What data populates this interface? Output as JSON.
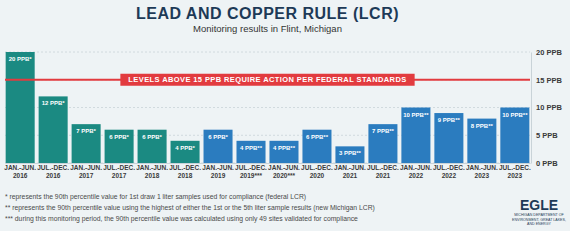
{
  "chart_data": {
    "type": "bar",
    "title": "LEAD AND COPPER RULE (LCR)",
    "subtitle": "Monitoring results in Flint, Michigan",
    "categories": [
      "JAN.-JUN. 2016",
      "JUL.-DEC. 2016",
      "JAN.-JUN. 2017",
      "JUL.-DEC. 2017",
      "JAN.-JUN. 2018",
      "JUL.-DEC. 2018",
      "JAN.-JUN. 2019",
      "JUL.-DEC. 2019***",
      "JAN.-JUN. 2020***",
      "JUL.-DEC. 2020",
      "JAN.-JUN. 2021",
      "JUL.-DEC. 2021",
      "JAN.-JUN. 2022",
      "JUL.-DEC. 2022",
      "JAN.-JUN. 2023",
      "JUL.-DEC. 2023"
    ],
    "values": [
      20,
      12,
      7,
      6,
      6,
      4,
      6,
      4,
      4,
      6,
      3,
      7,
      10,
      9,
      8,
      10
    ],
    "value_labels": [
      "20 PPB*",
      "12 PPB*",
      "7 PPB*",
      "6 PPB*",
      "6 PPB*",
      "4 PPB*",
      "6 PPB*",
      "4 PPB**",
      "4 PPB**",
      "6 PPB**",
      "3 PPB**",
      "7 PPB**",
      "10 PPB**",
      "9 PPB**",
      "8 PPB**",
      "10 PPB**"
    ],
    "colors": [
      "#1b8a82",
      "#1b8a82",
      "#1b8a82",
      "#1b8a82",
      "#1b8a82",
      "#1b8a82",
      "#2b7cbf",
      "#2b7cbf",
      "#2b7cbf",
      "#2b7cbf",
      "#2b7cbf",
      "#2b7cbf",
      "#2b7cbf",
      "#2b7cbf",
      "#2b7cbf",
      "#2b7cbf"
    ],
    "data_labels": true,
    "grid": true,
    "ylim": [
      0,
      20
    ],
    "yticks": [
      {
        "value": 0,
        "label": "0 PPB"
      },
      {
        "value": 5,
        "label": "5 PPB"
      },
      {
        "value": 10,
        "label": "10 PPB"
      },
      {
        "value": 15,
        "label": "15 PPB"
      },
      {
        "value": 20,
        "label": "20 PPB"
      }
    ],
    "reference_line": {
      "value": 15,
      "label": "LEVELS ABOVE 15 PPB REQUIRE ACTION PER FEDERAL STANDARDS"
    },
    "footnotes": [
      "* represents the 90th percentile value for 1st draw 1 liter samples used for compliance (federal LCR)",
      "** represents the 90th percentile value using the highest of either the 1st or the 5th liter sample results (new Michigan LCR)",
      "*** during this monitoring period, the 90th percentile value was calculated using only 49 sites validated for compliance"
    ],
    "logo": {
      "text": "EGLE",
      "lines": [
        "MICHIGAN DEPARTMENT OF",
        "ENVIRONMENT, GREAT LAKES,",
        "AND ENERGY"
      ]
    }
  }
}
